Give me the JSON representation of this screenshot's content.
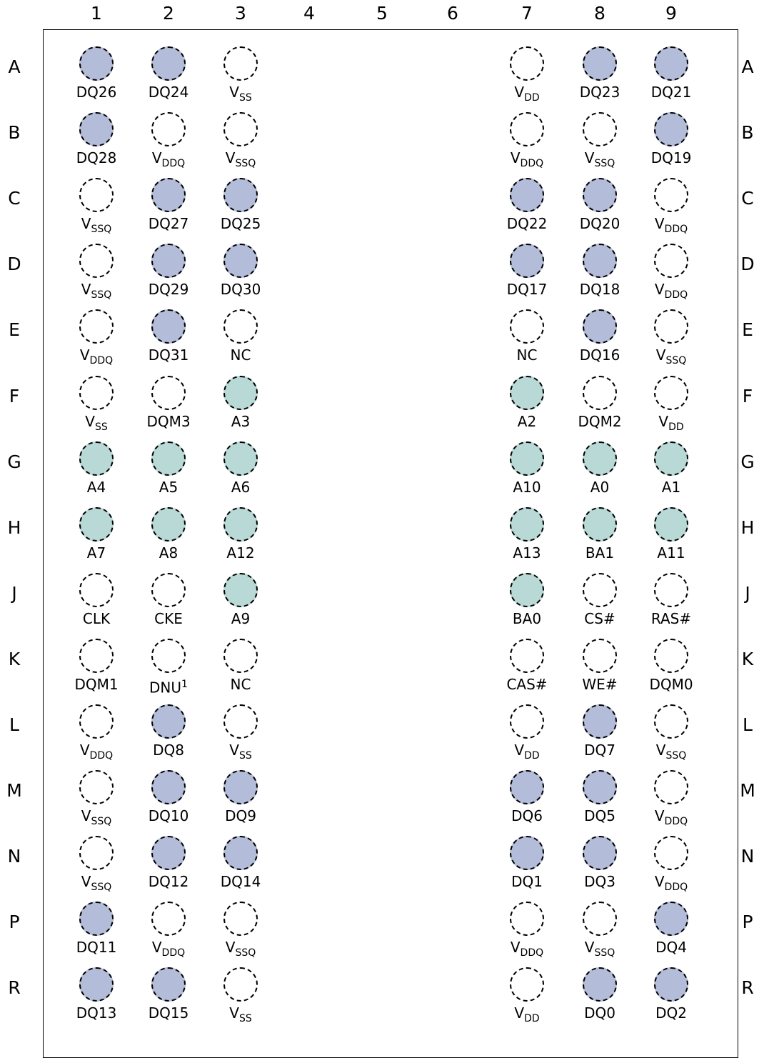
{
  "columns": [
    "1",
    "2",
    "3",
    "4",
    "5",
    "6",
    "7",
    "8",
    "9"
  ],
  "rows": [
    "A",
    "B",
    "C",
    "D",
    "E",
    "F",
    "G",
    "H",
    "J",
    "K",
    "L",
    "M",
    "N",
    "P",
    "R"
  ],
  "colors": {
    "dq": "#b3bcd8",
    "address": "#b8d9d6",
    "none": "#ffffff"
  },
  "pins": [
    {
      "row": "A",
      "col": "1",
      "label": "DQ26",
      "type": "dq"
    },
    {
      "row": "A",
      "col": "2",
      "label": "DQ24",
      "type": "dq"
    },
    {
      "row": "A",
      "col": "3",
      "label": "V",
      "sub": "SS",
      "type": "none"
    },
    {
      "row": "A",
      "col": "7",
      "label": "V",
      "sub": "DD",
      "type": "none"
    },
    {
      "row": "A",
      "col": "8",
      "label": "DQ23",
      "type": "dq"
    },
    {
      "row": "A",
      "col": "9",
      "label": "DQ21",
      "type": "dq"
    },
    {
      "row": "B",
      "col": "1",
      "label": "DQ28",
      "type": "dq"
    },
    {
      "row": "B",
      "col": "2",
      "label": "V",
      "sub": "DDQ",
      "type": "none"
    },
    {
      "row": "B",
      "col": "3",
      "label": "V",
      "sub": "SSQ",
      "type": "none"
    },
    {
      "row": "B",
      "col": "7",
      "label": "V",
      "sub": "DDQ",
      "type": "none"
    },
    {
      "row": "B",
      "col": "8",
      "label": "V",
      "sub": "SSQ",
      "type": "none"
    },
    {
      "row": "B",
      "col": "9",
      "label": "DQ19",
      "type": "dq"
    },
    {
      "row": "C",
      "col": "1",
      "label": "V",
      "sub": "SSQ",
      "type": "none"
    },
    {
      "row": "C",
      "col": "2",
      "label": "DQ27",
      "type": "dq"
    },
    {
      "row": "C",
      "col": "3",
      "label": "DQ25",
      "type": "dq"
    },
    {
      "row": "C",
      "col": "7",
      "label": "DQ22",
      "type": "dq"
    },
    {
      "row": "C",
      "col": "8",
      "label": "DQ20",
      "type": "dq"
    },
    {
      "row": "C",
      "col": "9",
      "label": "V",
      "sub": "DDQ",
      "type": "none"
    },
    {
      "row": "D",
      "col": "1",
      "label": "V",
      "sub": "SSQ",
      "type": "none"
    },
    {
      "row": "D",
      "col": "2",
      "label": "DQ29",
      "type": "dq"
    },
    {
      "row": "D",
      "col": "3",
      "label": "DQ30",
      "type": "dq"
    },
    {
      "row": "D",
      "col": "7",
      "label": "DQ17",
      "type": "dq"
    },
    {
      "row": "D",
      "col": "8",
      "label": "DQ18",
      "type": "dq"
    },
    {
      "row": "D",
      "col": "9",
      "label": "V",
      "sub": "DDQ",
      "type": "none"
    },
    {
      "row": "E",
      "col": "1",
      "label": "V",
      "sub": "DDQ",
      "type": "none"
    },
    {
      "row": "E",
      "col": "2",
      "label": "DQ31",
      "type": "dq"
    },
    {
      "row": "E",
      "col": "3",
      "label": "NC",
      "type": "none"
    },
    {
      "row": "E",
      "col": "7",
      "label": "NC",
      "type": "none"
    },
    {
      "row": "E",
      "col": "8",
      "label": "DQ16",
      "type": "dq"
    },
    {
      "row": "E",
      "col": "9",
      "label": "V",
      "sub": "SSQ",
      "type": "none"
    },
    {
      "row": "F",
      "col": "1",
      "label": "V",
      "sub": "SS",
      "type": "none"
    },
    {
      "row": "F",
      "col": "2",
      "label": "DQM3",
      "type": "none"
    },
    {
      "row": "F",
      "col": "3",
      "label": "A3",
      "type": "address"
    },
    {
      "row": "F",
      "col": "7",
      "label": "A2",
      "type": "address"
    },
    {
      "row": "F",
      "col": "8",
      "label": "DQM2",
      "type": "none"
    },
    {
      "row": "F",
      "col": "9",
      "label": "V",
      "sub": "DD",
      "type": "none"
    },
    {
      "row": "G",
      "col": "1",
      "label": "A4",
      "type": "address"
    },
    {
      "row": "G",
      "col": "2",
      "label": "A5",
      "type": "address"
    },
    {
      "row": "G",
      "col": "3",
      "label": "A6",
      "type": "address"
    },
    {
      "row": "G",
      "col": "7",
      "label": "A10",
      "type": "address"
    },
    {
      "row": "G",
      "col": "8",
      "label": "A0",
      "type": "address"
    },
    {
      "row": "G",
      "col": "9",
      "label": "A1",
      "type": "address"
    },
    {
      "row": "H",
      "col": "1",
      "label": "A7",
      "type": "address"
    },
    {
      "row": "H",
      "col": "2",
      "label": "A8",
      "type": "address"
    },
    {
      "row": "H",
      "col": "3",
      "label": "A12",
      "type": "address"
    },
    {
      "row": "H",
      "col": "7",
      "label": "A13",
      "type": "address"
    },
    {
      "row": "H",
      "col": "8",
      "label": "BA1",
      "type": "address"
    },
    {
      "row": "H",
      "col": "9",
      "label": "A11",
      "type": "address"
    },
    {
      "row": "J",
      "col": "1",
      "label": "CLK",
      "type": "none"
    },
    {
      "row": "J",
      "col": "2",
      "label": "CKE",
      "type": "none"
    },
    {
      "row": "J",
      "col": "3",
      "label": "A9",
      "type": "address"
    },
    {
      "row": "J",
      "col": "7",
      "label": "BA0",
      "type": "address"
    },
    {
      "row": "J",
      "col": "8",
      "label": "CS#",
      "type": "none"
    },
    {
      "row": "J",
      "col": "9",
      "label": "RAS#",
      "type": "none"
    },
    {
      "row": "K",
      "col": "1",
      "label": "DQM1",
      "type": "none"
    },
    {
      "row": "K",
      "col": "2",
      "label": "DNU",
      "sup": "1",
      "type": "none"
    },
    {
      "row": "K",
      "col": "3",
      "label": "NC",
      "type": "none"
    },
    {
      "row": "K",
      "col": "7",
      "label": "CAS#",
      "type": "none"
    },
    {
      "row": "K",
      "col": "8",
      "label": "WE#",
      "type": "none"
    },
    {
      "row": "K",
      "col": "9",
      "label": "DQM0",
      "type": "none"
    },
    {
      "row": "L",
      "col": "1",
      "label": "V",
      "sub": "DDQ",
      "type": "none"
    },
    {
      "row": "L",
      "col": "2",
      "label": "DQ8",
      "type": "dq"
    },
    {
      "row": "L",
      "col": "3",
      "label": "V",
      "sub": "SS",
      "type": "none"
    },
    {
      "row": "L",
      "col": "7",
      "label": "V",
      "sub": "DD",
      "type": "none"
    },
    {
      "row": "L",
      "col": "8",
      "label": "DQ7",
      "type": "dq"
    },
    {
      "row": "L",
      "col": "9",
      "label": "V",
      "sub": "SSQ",
      "type": "none"
    },
    {
      "row": "M",
      "col": "1",
      "label": "V",
      "sub": "SSQ",
      "type": "none"
    },
    {
      "row": "M",
      "col": "2",
      "label": "DQ10",
      "type": "dq"
    },
    {
      "row": "M",
      "col": "3",
      "label": "DQ9",
      "type": "dq"
    },
    {
      "row": "M",
      "col": "7",
      "label": "DQ6",
      "type": "dq"
    },
    {
      "row": "M",
      "col": "8",
      "label": "DQ5",
      "type": "dq"
    },
    {
      "row": "M",
      "col": "9",
      "label": "V",
      "sub": "DDQ",
      "type": "none"
    },
    {
      "row": "N",
      "col": "1",
      "label": "V",
      "sub": "SSQ",
      "type": "none"
    },
    {
      "row": "N",
      "col": "2",
      "label": "DQ12",
      "type": "dq"
    },
    {
      "row": "N",
      "col": "3",
      "label": "DQ14",
      "type": "dq"
    },
    {
      "row": "N",
      "col": "7",
      "label": "DQ1",
      "type": "dq"
    },
    {
      "row": "N",
      "col": "8",
      "label": "DQ3",
      "type": "dq"
    },
    {
      "row": "N",
      "col": "9",
      "label": "V",
      "sub": "DDQ",
      "type": "none"
    },
    {
      "row": "P",
      "col": "1",
      "label": "DQ11",
      "type": "dq"
    },
    {
      "row": "P",
      "col": "2",
      "label": "V",
      "sub": "DDQ",
      "type": "none"
    },
    {
      "row": "P",
      "col": "3",
      "label": "V",
      "sub": "SSQ",
      "type": "none"
    },
    {
      "row": "P",
      "col": "7",
      "label": "V",
      "sub": "DDQ",
      "type": "none"
    },
    {
      "row": "P",
      "col": "8",
      "label": "V",
      "sub": "SSQ",
      "type": "none"
    },
    {
      "row": "P",
      "col": "9",
      "label": "DQ4",
      "type": "dq"
    },
    {
      "row": "R",
      "col": "1",
      "label": "DQ13",
      "type": "dq"
    },
    {
      "row": "R",
      "col": "2",
      "label": "DQ15",
      "type": "dq"
    },
    {
      "row": "R",
      "col": "3",
      "label": "V",
      "sub": "SS",
      "type": "none"
    },
    {
      "row": "R",
      "col": "7",
      "label": "V",
      "sub": "DD",
      "type": "none"
    },
    {
      "row": "R",
      "col": "8",
      "label": "DQ0",
      "type": "dq"
    },
    {
      "row": "R",
      "col": "9",
      "label": "DQ2",
      "type": "dq"
    }
  ]
}
